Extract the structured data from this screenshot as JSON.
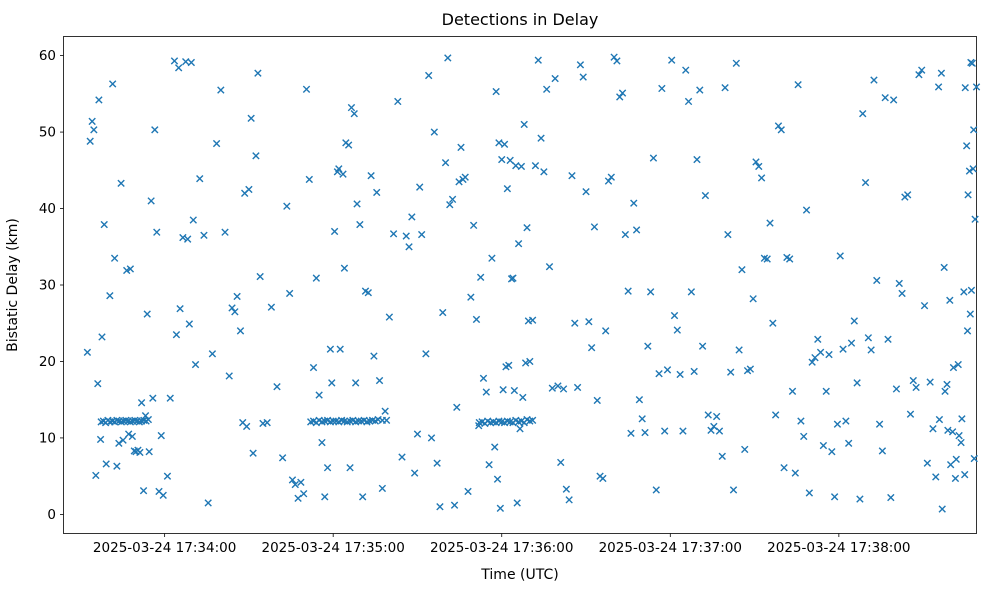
{
  "chart_data": {
    "type": "scatter",
    "title": "Detections in Delay",
    "xlabel": "Time (UTC)",
    "ylabel": "Bistatic Delay (km)",
    "marker": "x",
    "marker_color": "#1f77b4",
    "axis_color": "#000000",
    "legend": "none",
    "grid": false,
    "x_axis": {
      "unit": "seconds relative to 2025-03-24 17:34:00 UTC",
      "lim": [
        -36,
        289
      ],
      "ticks": [
        0,
        60,
        120,
        180,
        240
      ],
      "tick_labels": [
        "2025-03-24 17:34:00",
        "2025-03-24 17:35:00",
        "2025-03-24 17:36:00",
        "2025-03-24 17:37:00",
        "2025-03-24 17:38:00"
      ]
    },
    "y_axis": {
      "lim": [
        -2.5,
        62.5
      ],
      "ticks": [
        0,
        10,
        20,
        30,
        40,
        50,
        60
      ]
    },
    "points": [
      [
        -27.5,
        21.2
      ],
      [
        -26.5,
        48.8
      ],
      [
        -25.8,
        51.4
      ],
      [
        -25.2,
        50.3
      ],
      [
        -24.5,
        5.1
      ],
      [
        -23.8,
        17.1
      ],
      [
        -23.4,
        54.2
      ],
      [
        -22.8,
        9.8
      ],
      [
        -22.3,
        23.2
      ],
      [
        -21.5,
        37.9
      ],
      [
        -20.8,
        6.6
      ],
      [
        -19.5,
        28.6
      ],
      [
        -18.5,
        56.3
      ],
      [
        -17.8,
        33.5
      ],
      [
        -17.0,
        6.3
      ],
      [
        -16.3,
        9.3
      ],
      [
        -15.5,
        43.3
      ],
      [
        -14.8,
        9.7
      ],
      [
        -13.5,
        31.9
      ],
      [
        -12.8,
        10.5
      ],
      [
        -12.2,
        32.1
      ],
      [
        -11.5,
        10.2
      ],
      [
        -10.8,
        8.3
      ],
      [
        -10.2,
        8.2
      ],
      [
        -9.5,
        8.4
      ],
      [
        -8.8,
        8.1
      ],
      [
        -8.2,
        14.6
      ],
      [
        -7.5,
        3.1
      ],
      [
        -6.8,
        12.9
      ],
      [
        -6.2,
        26.2
      ],
      [
        -5.5,
        8.2
      ],
      [
        -4.8,
        41.0
      ],
      [
        -4.2,
        15.2
      ],
      [
        -3.5,
        50.3
      ],
      [
        -2.8,
        36.9
      ],
      [
        -2.0,
        3.0
      ],
      [
        -1.2,
        10.3
      ],
      [
        -0.5,
        2.5
      ],
      [
        -22.6,
        12.1
      ],
      [
        -21.8,
        12.2
      ],
      [
        -21.0,
        12.0
      ],
      [
        -20.2,
        12.3
      ],
      [
        -19.4,
        12.1
      ],
      [
        -18.6,
        12.2
      ],
      [
        -17.8,
        12.1
      ],
      [
        -17.0,
        12.3
      ],
      [
        -16.2,
        12.2
      ],
      [
        -15.4,
        12.1
      ],
      [
        -14.6,
        12.2
      ],
      [
        -13.8,
        12.3
      ],
      [
        -13.0,
        12.2
      ],
      [
        -12.2,
        12.1
      ],
      [
        -11.4,
        12.2
      ],
      [
        -10.6,
        12.3
      ],
      [
        -9.8,
        12.2
      ],
      [
        -9.0,
        12.1
      ],
      [
        -8.2,
        12.2
      ],
      [
        -7.4,
        12.3
      ],
      [
        -6.6,
        12.2
      ],
      [
        -5.8,
        12.4
      ],
      [
        1.0,
        5.0
      ],
      [
        2.0,
        15.2
      ],
      [
        3.5,
        59.3
      ],
      [
        4.2,
        23.5
      ],
      [
        5.0,
        58.4
      ],
      [
        5.5,
        26.9
      ],
      [
        6.5,
        36.2
      ],
      [
        7.5,
        59.2
      ],
      [
        8.2,
        36.0
      ],
      [
        8.8,
        24.9
      ],
      [
        9.5,
        59.1
      ],
      [
        10.2,
        38.5
      ],
      [
        11.0,
        19.6
      ],
      [
        12.5,
        43.9
      ],
      [
        14.0,
        36.5
      ],
      [
        15.5,
        1.5
      ],
      [
        17.0,
        21.0
      ],
      [
        18.5,
        48.5
      ],
      [
        20.0,
        55.5
      ],
      [
        21.5,
        36.9
      ],
      [
        23.0,
        18.1
      ],
      [
        24.0,
        27.0
      ],
      [
        25.0,
        26.5
      ],
      [
        25.8,
        28.5
      ],
      [
        27.0,
        24.0
      ],
      [
        27.8,
        12.0
      ],
      [
        28.5,
        42.0
      ],
      [
        29.2,
        11.5
      ],
      [
        30.0,
        42.5
      ],
      [
        30.8,
        51.8
      ],
      [
        31.5,
        8.0
      ],
      [
        32.5,
        46.9
      ],
      [
        33.2,
        57.7
      ],
      [
        34.0,
        31.1
      ],
      [
        35.0,
        11.9
      ],
      [
        36.5,
        12.0
      ],
      [
        38.0,
        27.1
      ],
      [
        40.0,
        16.7
      ],
      [
        42.0,
        7.4
      ],
      [
        43.5,
        40.3
      ],
      [
        44.5,
        28.9
      ],
      [
        45.5,
        4.5
      ],
      [
        46.5,
        3.9
      ],
      [
        47.5,
        2.1
      ],
      [
        48.5,
        4.2
      ],
      [
        49.5,
        2.7
      ],
      [
        50.5,
        55.6
      ],
      [
        51.5,
        43.8
      ],
      [
        53.0,
        19.2
      ],
      [
        54.0,
        30.9
      ],
      [
        55.0,
        15.6
      ],
      [
        56.0,
        9.4
      ],
      [
        57.0,
        2.3
      ],
      [
        58.0,
        6.1
      ],
      [
        59.0,
        21.6
      ],
      [
        59.5,
        17.2
      ],
      [
        52.0,
        12.1
      ],
      [
        53.0,
        12.2
      ],
      [
        54.0,
        12.0
      ],
      [
        55.0,
        12.3
      ],
      [
        56.0,
        12.1
      ],
      [
        57.0,
        12.2
      ],
      [
        58.0,
        12.3
      ],
      [
        59.0,
        12.1
      ],
      [
        60.0,
        12.2
      ],
      [
        61.0,
        12.2
      ],
      [
        62.0,
        12.1
      ],
      [
        63.0,
        12.3
      ],
      [
        64.0,
        12.2
      ],
      [
        65.0,
        12.1
      ],
      [
        66.0,
        12.2
      ],
      [
        67.0,
        12.3
      ],
      [
        68.0,
        12.1
      ],
      [
        69.0,
        12.2
      ],
      [
        70.0,
        12.2
      ],
      [
        71.0,
        12.3
      ],
      [
        72.0,
        12.1
      ],
      [
        73.0,
        12.2
      ],
      [
        74.0,
        12.3
      ],
      [
        75.0,
        12.2
      ],
      [
        76.0,
        12.4
      ],
      [
        77.5,
        12.3
      ],
      [
        79.0,
        12.3
      ],
      [
        60.5,
        37.0
      ],
      [
        61.5,
        44.8
      ],
      [
        62.0,
        45.2
      ],
      [
        62.5,
        21.6
      ],
      [
        63.5,
        44.5
      ],
      [
        64.0,
        32.2
      ],
      [
        64.5,
        48.6
      ],
      [
        65.5,
        48.3
      ],
      [
        66.0,
        6.1
      ],
      [
        66.5,
        53.2
      ],
      [
        67.5,
        52.4
      ],
      [
        68.0,
        17.2
      ],
      [
        68.5,
        40.6
      ],
      [
        69.5,
        37.9
      ],
      [
        70.5,
        2.3
      ],
      [
        71.5,
        29.2
      ],
      [
        72.5,
        29.0
      ],
      [
        73.5,
        44.3
      ],
      [
        74.5,
        20.7
      ],
      [
        75.5,
        42.1
      ],
      [
        76.5,
        17.5
      ],
      [
        77.5,
        3.4
      ],
      [
        78.5,
        13.5
      ],
      [
        80.0,
        25.8
      ],
      [
        81.5,
        36.7
      ],
      [
        83.0,
        54.0
      ],
      [
        84.5,
        7.5
      ],
      [
        86.0,
        36.4
      ],
      [
        87.0,
        35.0
      ],
      [
        88.0,
        38.9
      ],
      [
        89.0,
        5.4
      ],
      [
        90.0,
        10.5
      ],
      [
        90.8,
        42.8
      ],
      [
        91.5,
        36.6
      ],
      [
        93.0,
        21.0
      ],
      [
        94.0,
        57.4
      ],
      [
        95.0,
        10.0
      ],
      [
        96.0,
        50.0
      ],
      [
        97.0,
        6.7
      ],
      [
        98.0,
        1.0
      ],
      [
        99.0,
        26.4
      ],
      [
        100.0,
        46.0
      ],
      [
        100.8,
        59.7
      ],
      [
        101.5,
        40.5
      ],
      [
        102.5,
        41.2
      ],
      [
        103.2,
        1.2
      ],
      [
        104.0,
        14.0
      ],
      [
        104.8,
        43.5
      ],
      [
        105.5,
        48.0
      ],
      [
        106.2,
        43.8
      ],
      [
        107.0,
        44.1
      ],
      [
        108.0,
        3.0
      ],
      [
        109.0,
        28.4
      ],
      [
        110.0,
        37.8
      ],
      [
        111.0,
        25.5
      ],
      [
        111.8,
        11.6
      ],
      [
        112.0,
        12.0
      ],
      [
        113.0,
        12.1
      ],
      [
        114.0,
        11.9
      ],
      [
        115.0,
        12.2
      ],
      [
        116.0,
        12.0
      ],
      [
        117.0,
        12.1
      ],
      [
        118.0,
        12.0
      ],
      [
        119.0,
        12.2
      ],
      [
        120.0,
        12.1
      ],
      [
        121.0,
        12.0
      ],
      [
        122.0,
        12.2
      ],
      [
        123.0,
        12.1
      ],
      [
        124.0,
        12.0
      ],
      [
        125.0,
        12.3
      ],
      [
        126.0,
        12.1
      ],
      [
        127.0,
        12.2
      ],
      [
        128.0,
        12.0
      ],
      [
        129.0,
        12.4
      ],
      [
        130.0,
        12.2
      ],
      [
        131.0,
        12.3
      ],
      [
        112.5,
        31.0
      ],
      [
        113.5,
        17.8
      ],
      [
        114.5,
        16.0
      ],
      [
        115.5,
        6.5
      ],
      [
        116.5,
        33.5
      ],
      [
        117.5,
        8.8
      ],
      [
        118.5,
        4.6
      ],
      [
        119.5,
        0.8
      ],
      [
        120.5,
        16.3
      ],
      [
        121.5,
        19.3
      ],
      [
        122.5,
        19.5
      ],
      [
        123.5,
        30.8
      ],
      [
        124.5,
        16.2
      ],
      [
        125.5,
        1.5
      ],
      [
        126.5,
        11.2
      ],
      [
        127.5,
        15.3
      ],
      [
        128.5,
        19.8
      ],
      [
        129.5,
        25.3
      ],
      [
        118.0,
        55.3
      ],
      [
        119.0,
        48.6
      ],
      [
        120.0,
        46.4
      ],
      [
        121.0,
        48.4
      ],
      [
        122.0,
        42.6
      ],
      [
        123.0,
        46.3
      ],
      [
        124.0,
        30.9
      ],
      [
        125.0,
        45.6
      ],
      [
        126.0,
        35.4
      ],
      [
        127.0,
        45.5
      ],
      [
        128.0,
        51.0
      ],
      [
        129.0,
        37.5
      ],
      [
        130.0,
        20.0
      ],
      [
        131.0,
        25.4
      ],
      [
        132.0,
        45.6
      ],
      [
        133.0,
        59.4
      ],
      [
        134.0,
        49.2
      ],
      [
        135.0,
        44.8
      ],
      [
        136.0,
        55.6
      ],
      [
        137.0,
        32.4
      ],
      [
        138.0,
        16.5
      ],
      [
        139.0,
        57.0
      ],
      [
        140.0,
        16.8
      ],
      [
        141.0,
        6.8
      ],
      [
        142.0,
        16.4
      ],
      [
        143.0,
        3.3
      ],
      [
        144.0,
        1.9
      ],
      [
        145.0,
        44.3
      ],
      [
        146.0,
        25.0
      ],
      [
        147.0,
        16.6
      ],
      [
        148.0,
        58.8
      ],
      [
        149.0,
        57.2
      ],
      [
        150.0,
        42.2
      ],
      [
        151.0,
        25.2
      ],
      [
        152.0,
        21.8
      ],
      [
        153.0,
        37.6
      ],
      [
        154.0,
        14.9
      ],
      [
        155.0,
        5.0
      ],
      [
        156.0,
        4.7
      ],
      [
        157.0,
        24.0
      ],
      [
        158.0,
        43.6
      ],
      [
        159.0,
        44.1
      ],
      [
        160.0,
        59.8
      ],
      [
        161.0,
        59.3
      ],
      [
        162.0,
        54.6
      ],
      [
        163.0,
        55.1
      ],
      [
        164.0,
        36.6
      ],
      [
        165.0,
        29.2
      ],
      [
        166.0,
        10.6
      ],
      [
        167.0,
        40.7
      ],
      [
        168.0,
        37.2
      ],
      [
        169.0,
        15.0
      ],
      [
        170.0,
        12.5
      ],
      [
        171.0,
        10.7
      ],
      [
        172.0,
        22.0
      ],
      [
        173.0,
        29.1
      ],
      [
        174.0,
        46.6
      ],
      [
        175.0,
        3.2
      ],
      [
        176.0,
        18.4
      ],
      [
        177.0,
        55.7
      ],
      [
        178.0,
        10.9
      ],
      [
        179.0,
        18.9
      ],
      [
        180.5,
        59.4
      ],
      [
        181.5,
        26.0
      ],
      [
        182.5,
        24.1
      ],
      [
        183.5,
        18.3
      ],
      [
        184.5,
        10.9
      ],
      [
        185.5,
        58.1
      ],
      [
        186.5,
        54.0
      ],
      [
        187.5,
        29.1
      ],
      [
        188.5,
        18.7
      ],
      [
        189.5,
        46.4
      ],
      [
        190.5,
        55.5
      ],
      [
        191.5,
        22.0
      ],
      [
        192.5,
        41.7
      ],
      [
        193.5,
        13.0
      ],
      [
        194.5,
        11.0
      ],
      [
        195.5,
        11.5
      ],
      [
        196.5,
        12.8
      ],
      [
        197.5,
        10.9
      ],
      [
        198.5,
        7.6
      ],
      [
        199.5,
        55.8
      ],
      [
        200.5,
        36.6
      ],
      [
        201.5,
        18.6
      ],
      [
        202.5,
        3.2
      ],
      [
        203.5,
        59.0
      ],
      [
        204.5,
        21.5
      ],
      [
        205.5,
        32.0
      ],
      [
        206.5,
        8.5
      ],
      [
        207.5,
        18.8
      ],
      [
        208.5,
        19.0
      ],
      [
        209.5,
        28.2
      ],
      [
        210.5,
        46.1
      ],
      [
        211.5,
        45.5
      ],
      [
        212.5,
        44.0
      ],
      [
        213.5,
        33.5
      ],
      [
        214.5,
        33.4
      ],
      [
        215.5,
        38.1
      ],
      [
        216.5,
        25.0
      ],
      [
        217.5,
        13.0
      ],
      [
        218.5,
        50.8
      ],
      [
        219.5,
        50.3
      ],
      [
        220.5,
        6.1
      ],
      [
        221.5,
        33.6
      ],
      [
        222.5,
        33.4
      ],
      [
        223.5,
        16.1
      ],
      [
        224.5,
        5.4
      ],
      [
        225.5,
        56.2
      ],
      [
        226.5,
        12.2
      ],
      [
        227.5,
        10.2
      ],
      [
        228.5,
        39.8
      ],
      [
        229.5,
        2.8
      ],
      [
        230.5,
        19.9
      ],
      [
        231.5,
        20.5
      ],
      [
        232.5,
        22.9
      ],
      [
        233.5,
        21.2
      ],
      [
        234.5,
        9.0
      ],
      [
        235.5,
        16.1
      ],
      [
        236.5,
        20.9
      ],
      [
        237.5,
        8.2
      ],
      [
        238.5,
        2.3
      ],
      [
        239.5,
        11.8
      ],
      [
        240.5,
        33.8
      ],
      [
        241.5,
        21.6
      ],
      [
        242.5,
        12.2
      ],
      [
        243.5,
        9.3
      ],
      [
        244.5,
        22.4
      ],
      [
        245.5,
        25.3
      ],
      [
        246.5,
        17.2
      ],
      [
        247.5,
        2.0
      ],
      [
        248.5,
        52.4
      ],
      [
        249.5,
        43.4
      ],
      [
        250.5,
        23.1
      ],
      [
        251.5,
        21.5
      ],
      [
        252.5,
        56.8
      ],
      [
        253.5,
        30.6
      ],
      [
        254.5,
        11.8
      ],
      [
        255.5,
        8.3
      ],
      [
        256.5,
        54.5
      ],
      [
        257.5,
        22.9
      ],
      [
        258.5,
        2.2
      ],
      [
        259.5,
        54.2
      ],
      [
        260.5,
        16.4
      ],
      [
        261.5,
        30.2
      ],
      [
        262.5,
        28.9
      ],
      [
        263.5,
        41.5
      ],
      [
        264.5,
        41.8
      ],
      [
        265.5,
        13.1
      ],
      [
        266.5,
        17.5
      ],
      [
        267.5,
        16.6
      ],
      [
        268.5,
        57.5
      ],
      [
        269.5,
        58.1
      ],
      [
        270.5,
        27.3
      ],
      [
        271.5,
        6.7
      ],
      [
        272.5,
        17.3
      ],
      [
        273.5,
        11.2
      ],
      [
        274.5,
        4.9
      ],
      [
        275.5,
        55.9
      ],
      [
        276.5,
        57.7
      ],
      [
        277.5,
        32.3
      ],
      [
        278.5,
        17.0
      ],
      [
        279.5,
        28.0
      ],
      [
        280.5,
        10.8
      ],
      [
        281.5,
        4.7
      ],
      [
        282.5,
        19.6
      ],
      [
        283.5,
        9.4
      ],
      [
        284.5,
        29.1
      ],
      [
        285.0,
        55.8
      ],
      [
        285.5,
        48.2
      ],
      [
        286.0,
        41.8
      ],
      [
        286.5,
        44.9
      ],
      [
        287.0,
        59.1
      ],
      [
        287.5,
        59.0
      ],
      [
        288.0,
        50.3
      ],
      [
        288.5,
        38.6
      ],
      [
        287.8,
        45.2
      ],
      [
        286.8,
        26.2
      ],
      [
        285.8,
        24.0
      ],
      [
        284.8,
        5.2
      ],
      [
        283.8,
        12.5
      ],
      [
        282.8,
        10.3
      ],
      [
        281.8,
        7.2
      ],
      [
        280.8,
        19.2
      ],
      [
        279.8,
        6.5
      ],
      [
        278.8,
        11.0
      ],
      [
        277.8,
        16.1
      ],
      [
        276.8,
        0.7
      ],
      [
        275.8,
        12.4
      ],
      [
        289.0,
        55.9
      ],
      [
        288.2,
        7.3
      ],
      [
        287.2,
        29.3
      ]
    ]
  }
}
